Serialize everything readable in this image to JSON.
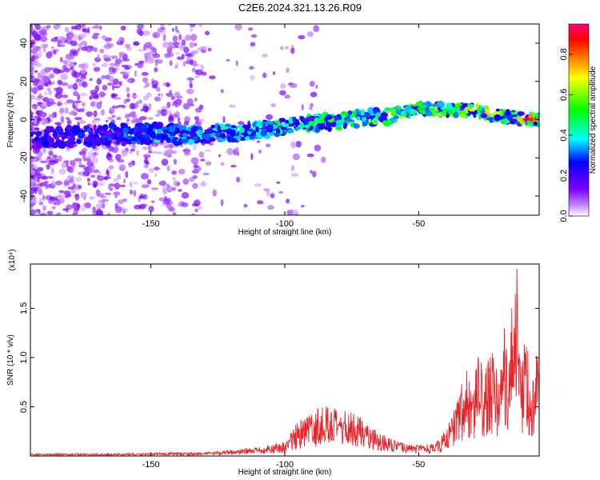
{
  "page": {
    "title": "C2E6.2024.321.13.26.R09"
  },
  "chart_data": [
    {
      "type": "heatmap",
      "xlabel": "Height of straight line (km)",
      "ylabel": "Frequency (Hz)",
      "xlim": [
        -195,
        -5
      ],
      "ylim": [
        -50,
        50
      ],
      "x_ticks": [
        -150,
        -100,
        -50
      ],
      "y_ticks": [
        -40,
        -20,
        0,
        20,
        40
      ],
      "colorbar": {
        "label": "Normalized spectral amplitude",
        "range": [
          0,
          0.95
        ],
        "ticks": [
          0.0,
          0.2,
          0.4,
          0.6,
          0.8
        ],
        "colors": [
          "#ffffff",
          "#c080ff",
          "#7f00ff",
          "#0000ff",
          "#00ffff",
          "#00ff00",
          "#ffff00",
          "#ff8000",
          "#ff0000",
          "#ff0080"
        ]
      },
      "ridge": {
        "x": [
          -195,
          -180,
          -165,
          -150,
          -135,
          -120,
          -105,
          -90,
          -75,
          -60,
          -50,
          -40,
          -30,
          -20,
          -10,
          -5
        ],
        "y": [
          -10,
          -9,
          -8,
          -7,
          -8,
          -7,
          -5,
          -2,
          0,
          2,
          6,
          5,
          5,
          2,
          0,
          0
        ]
      },
      "grid": false,
      "legend": "none"
    },
    {
      "type": "line",
      "xlabel": "Height of straight line (km)",
      "ylabel": "SNR (10 * v/v)",
      "y_multiplier": "(x10⁴)",
      "xlim": [
        -195,
        -5
      ],
      "ylim": [
        0,
        1.95
      ],
      "x_ticks": [
        -150,
        -100,
        -50
      ],
      "y_ticks": [
        "0.5",
        "1.0",
        "1.5"
      ],
      "color": "#e8232a",
      "x": [
        -195,
        -180,
        -160,
        -140,
        -130,
        -120,
        -110,
        -100,
        -95,
        -90,
        -85,
        -80,
        -75,
        -70,
        -65,
        -60,
        -55,
        -50,
        -45,
        -42,
        -38,
        -35,
        -32,
        -30,
        -28,
        -25,
        -22,
        -20,
        -18,
        -16,
        -14,
        -12,
        -10,
        -8,
        -6,
        -5
      ],
      "y": [
        0.02,
        0.02,
        0.02,
        0.03,
        0.03,
        0.05,
        0.07,
        0.12,
        0.28,
        0.35,
        0.45,
        0.36,
        0.38,
        0.3,
        0.2,
        0.14,
        0.1,
        0.09,
        0.1,
        0.14,
        0.3,
        0.55,
        0.72,
        0.45,
        0.85,
        0.7,
        0.95,
        0.6,
        1.1,
        0.8,
        1.95,
        0.75,
        1.05,
        0.6,
        0.95,
        0.9
      ]
    }
  ]
}
